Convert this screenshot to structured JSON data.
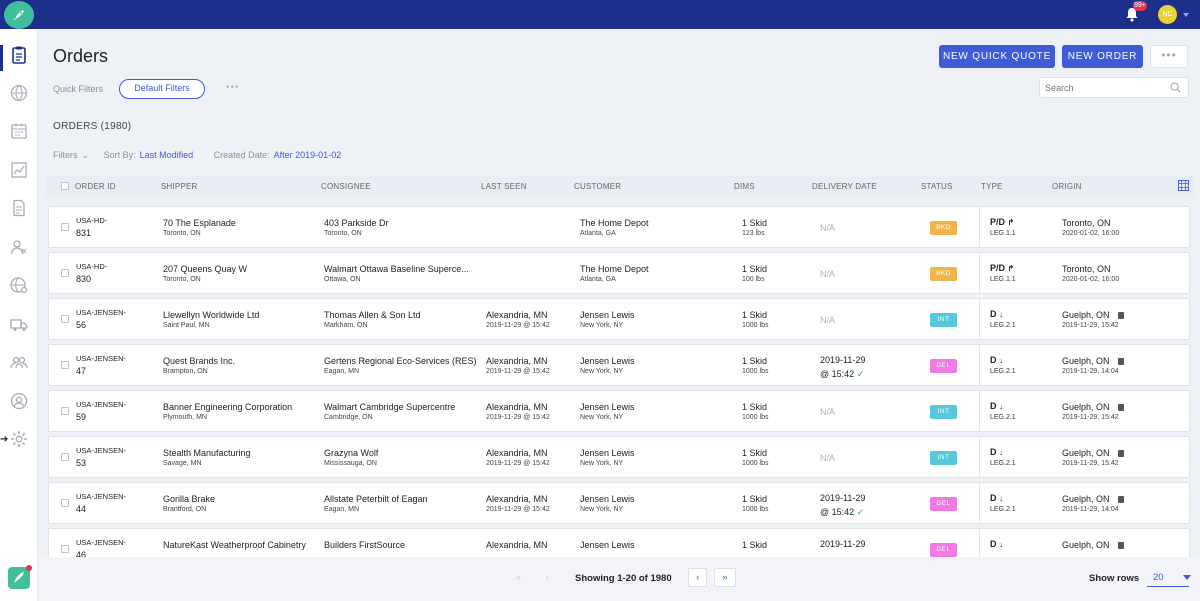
{
  "topbar": {
    "notification_count": "99+",
    "user_initials": "NC"
  },
  "header": {
    "title": "Orders",
    "new_quick_quote_label": "NEW QUICK QUOTE",
    "new_order_label": "NEW ORDER",
    "more_label": "•••"
  },
  "quick_filters": {
    "label": "Quick Filters",
    "default_label": "Default Filters",
    "more_label": "•••"
  },
  "search": {
    "placeholder": "Search"
  },
  "orders_count": "ORDERS (1980)",
  "filter_bar": {
    "filters_label": "Filters",
    "sort_by_label": "Sort By:",
    "sort_by_value": "Last Modified",
    "created_date_label": "Created Date:",
    "created_date_value": "After 2019-01-02"
  },
  "columns": [
    "ORDER ID",
    "SHIPPER",
    "CONSIGNEE",
    "LAST SEEN",
    "CUSTOMER",
    "DIMS",
    "DELIVERY DATE",
    "STATUS",
    "TYPE",
    "ORIGIN"
  ],
  "colors": {
    "primary": "#3f5bd8",
    "nav": "#1c2f8a",
    "bkd": "#f2b448",
    "int": "#55c9dc",
    "del": "#f07ae3"
  },
  "rows": [
    {
      "id1": "USA-HD-",
      "id2": "831",
      "shipper": "70 The Esplanade",
      "shipper_city": "Toronto, ON",
      "consignee": "403 Parkside Dr",
      "consignee_city": "Toronto, ON",
      "last_seen": "",
      "last_seen_time": "",
      "customer": "The Home Depot",
      "customer_city": "Atlanta, GA",
      "dims": "1 Skid",
      "weight": "123 lbs",
      "delivery": "N/A",
      "delivery_time": "",
      "status": "BKD",
      "type": "P/D",
      "leg": "LEG.1.1",
      "origin": "Toronto, ON",
      "origin_time": "2020-01-02, 16:00"
    },
    {
      "id1": "USA-HD-",
      "id2": "830",
      "shipper": "207 Queens Quay W",
      "shipper_city": "Toronto, ON",
      "consignee": "Walmart Ottawa Baseline Supercе...",
      "consignee_city": "Ottawa, ON",
      "last_seen": "",
      "last_seen_time": "",
      "customer": "The Home Depot",
      "customer_city": "Atlanta, GA",
      "dims": "1 Skid",
      "weight": "100 lbs",
      "delivery": "N/A",
      "delivery_time": "",
      "status": "BKD",
      "type": "P/D",
      "leg": "LEG.1.1",
      "origin": "Toronto, ON",
      "origin_time": "2020-01-02, 16:00"
    },
    {
      "id1": "USA-JENSEN-",
      "id2": "56",
      "shipper": "Llewellyn Worldwide Ltd",
      "shipper_city": "Saint Paul, MN",
      "consignee": "Thomas Allen & Son Ltd",
      "consignee_city": "Markham, ON",
      "last_seen": "Alexandria, MN",
      "last_seen_time": "2019-11-29 @ 15:42",
      "customer": "Jensen Lewis",
      "customer_city": "New York, NY",
      "dims": "1 Skid",
      "weight": "1000 lbs",
      "delivery": "N/A",
      "delivery_time": "",
      "status": "INT",
      "type": "D",
      "leg": "LEG.2.1",
      "origin": "Guelph, ON",
      "origin_time": "2019-11-29, 15:42"
    },
    {
      "id1": "USA-JENSEN-",
      "id2": "47",
      "shipper": "Quest Brands Inc.",
      "shipper_city": "Brampton, ON",
      "consignee": "Gertens Regional Eco-Services (RES)",
      "consignee_city": "Eagan, MN",
      "last_seen": "Alexandria, MN",
      "last_seen_time": "2019-11-29 @ 15:42",
      "customer": "Jensen Lewis",
      "customer_city": "New York, NY",
      "dims": "1 Skid",
      "weight": "1000 lbs",
      "delivery": "2019-11-29",
      "delivery_time": "@ 15:42",
      "status": "DEL",
      "type": "D",
      "leg": "LEG.2.1",
      "origin": "Guelph, ON",
      "origin_time": "2019-11-29, 14:04"
    },
    {
      "id1": "USA-JENSEN-",
      "id2": "59",
      "shipper": "Banner Engineering Corporation",
      "shipper_city": "Plymouth, MN",
      "consignee": "Walmart Cambridge Supercentre",
      "consignee_city": "Cambridge, ON",
      "last_seen": "Alexandria, MN",
      "last_seen_time": "2019-11-29 @ 15:42",
      "customer": "Jensen Lewis",
      "customer_city": "New York, NY",
      "dims": "1 Skid",
      "weight": "1000 lbs",
      "delivery": "N/A",
      "delivery_time": "",
      "status": "INT",
      "type": "D",
      "leg": "LEG.2.1",
      "origin": "Guelph, ON",
      "origin_time": "2019-11-29, 15:42"
    },
    {
      "id1": "USA-JENSEN-",
      "id2": "53",
      "shipper": "Stealth Manufacturing",
      "shipper_city": "Savage, MN",
      "consignee": "Grazyna Wolf",
      "consignee_city": "Mississauga, ON",
      "last_seen": "Alexandria, MN",
      "last_seen_time": "2019-11-29 @ 15:42",
      "customer": "Jensen Lewis",
      "customer_city": "New York, NY",
      "dims": "1 Skid",
      "weight": "1000 lbs",
      "delivery": "N/A",
      "delivery_time": "",
      "status": "INT",
      "type": "D",
      "leg": "LEG.2.1",
      "origin": "Guelph, ON",
      "origin_time": "2019-11-29, 15:42"
    },
    {
      "id1": "USA-JENSEN-",
      "id2": "44",
      "shipper": "Gorilla Brake",
      "shipper_city": "Brantford, ON",
      "consignee": "Allstate Peterbilt of Eagan",
      "consignee_city": "Eagan, MN",
      "last_seen": "Alexandria, MN",
      "last_seen_time": "2019-11-29 @ 15:42",
      "customer": "Jensen Lewis",
      "customer_city": "New York, NY",
      "dims": "1 Skid",
      "weight": "1000 lbs",
      "delivery": "2019-11-29",
      "delivery_time": "@ 15:42",
      "status": "DEL",
      "type": "D",
      "leg": "LEG.2.1",
      "origin": "Guelph, ON",
      "origin_time": "2019-11-29, 14:04"
    },
    {
      "id1": "USA-JENSEN-",
      "id2": "46",
      "shipper": "NatureKast Weatherproof Cabinetry",
      "shipper_city": "",
      "consignee": "Builders FirstSource",
      "consignee_city": "",
      "last_seen": "Alexandria, MN",
      "last_seen_time": "",
      "customer": "Jensen Lewis",
      "customer_city": "",
      "dims": "1 Skid",
      "weight": "",
      "delivery": "2019-11-29",
      "delivery_time": "",
      "status": "DEL",
      "type": "D",
      "leg": "",
      "origin": "Guelph, ON",
      "origin_time": ""
    }
  ],
  "pagination": {
    "showing": "Showing 1-20 of 1980",
    "show_rows_label": "Show rows",
    "rows_per_page": "20"
  }
}
